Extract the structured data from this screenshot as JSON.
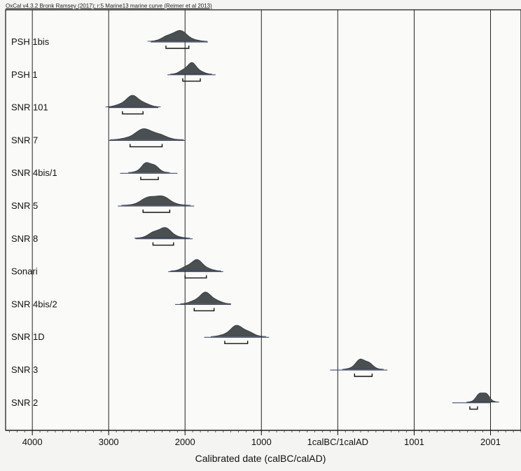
{
  "header": "OxCal v4.3.2 Bronk Ramsey (2017); r:5 Marine13 marine curve (Reimer et al 2013)",
  "chart_data": {
    "type": "calibration-multiplot",
    "xlabel": "Calibrated date (calBC/calAD)",
    "xticks": [
      {
        "value": 4000,
        "label": "4000"
      },
      {
        "value": 3000,
        "label": "3000"
      },
      {
        "value": 2000,
        "label": "2000"
      },
      {
        "value": 1000,
        "label": "1000"
      },
      {
        "value": 0,
        "label": "1calBC/1calAD"
      },
      {
        "value": -1001,
        "label": "1001"
      },
      {
        "value": -2001,
        "label": "2001"
      }
    ],
    "xlim": [
      4350,
      -2400
    ],
    "grid": true,
    "samples": [
      {
        "name": "PSH 1bis",
        "peak": 2100,
        "sd": 130,
        "range_68": [
          2250,
          1950
        ],
        "range_95": [
          2450,
          1700
        ]
      },
      {
        "name": "PSH 1",
        "peak": 1920,
        "sd": 90,
        "range_68": [
          2030,
          1800
        ],
        "range_95": [
          2230,
          1600
        ]
      },
      {
        "name": "SNR 101",
        "peak": 2680,
        "sd": 120,
        "range_68": [
          2820,
          2550
        ],
        "range_95": [
          3000,
          2350
        ]
      },
      {
        "name": "SNR 7",
        "peak": 2500,
        "sd": 160,
        "range_68": [
          2720,
          2300
        ],
        "range_95": [
          3000,
          2000
        ]
      },
      {
        "name": "SNR 4bis/1",
        "peak": 2470,
        "sd": 90,
        "range_68": [
          2580,
          2350
        ],
        "range_95": [
          2850,
          2100
        ]
      },
      {
        "name": "SNR 5",
        "peak": 2380,
        "sd": 150,
        "range_68": [
          2550,
          2200
        ],
        "range_95": [
          2880,
          1880
        ]
      },
      {
        "name": "SNR 8",
        "peak": 2300,
        "sd": 120,
        "range_68": [
          2420,
          2150
        ],
        "range_95": [
          2650,
          1900
        ]
      },
      {
        "name": "Sonari",
        "peak": 1860,
        "sd": 110,
        "range_68": [
          2000,
          1720
        ],
        "range_95": [
          2220,
          1500
        ]
      },
      {
        "name": "SNR 4bis/2",
        "peak": 1730,
        "sd": 110,
        "range_68": [
          1880,
          1620
        ],
        "range_95": [
          2130,
          1400
        ]
      },
      {
        "name": "SNR 1D",
        "peak": 1300,
        "sd": 120,
        "range_68": [
          1480,
          1180
        ],
        "range_95": [
          1750,
          900
        ]
      },
      {
        "name": "SNR 3",
        "peak": -330,
        "sd": 90,
        "range_68": [
          -220,
          -450
        ],
        "range_95": [
          100,
          -650
        ]
      },
      {
        "name": "SNR 2",
        "peak": -1900,
        "sd": 70,
        "range_68": [
          -1730,
          -1830
        ],
        "range_95": [
          -1500,
          -2000
        ]
      }
    ]
  }
}
